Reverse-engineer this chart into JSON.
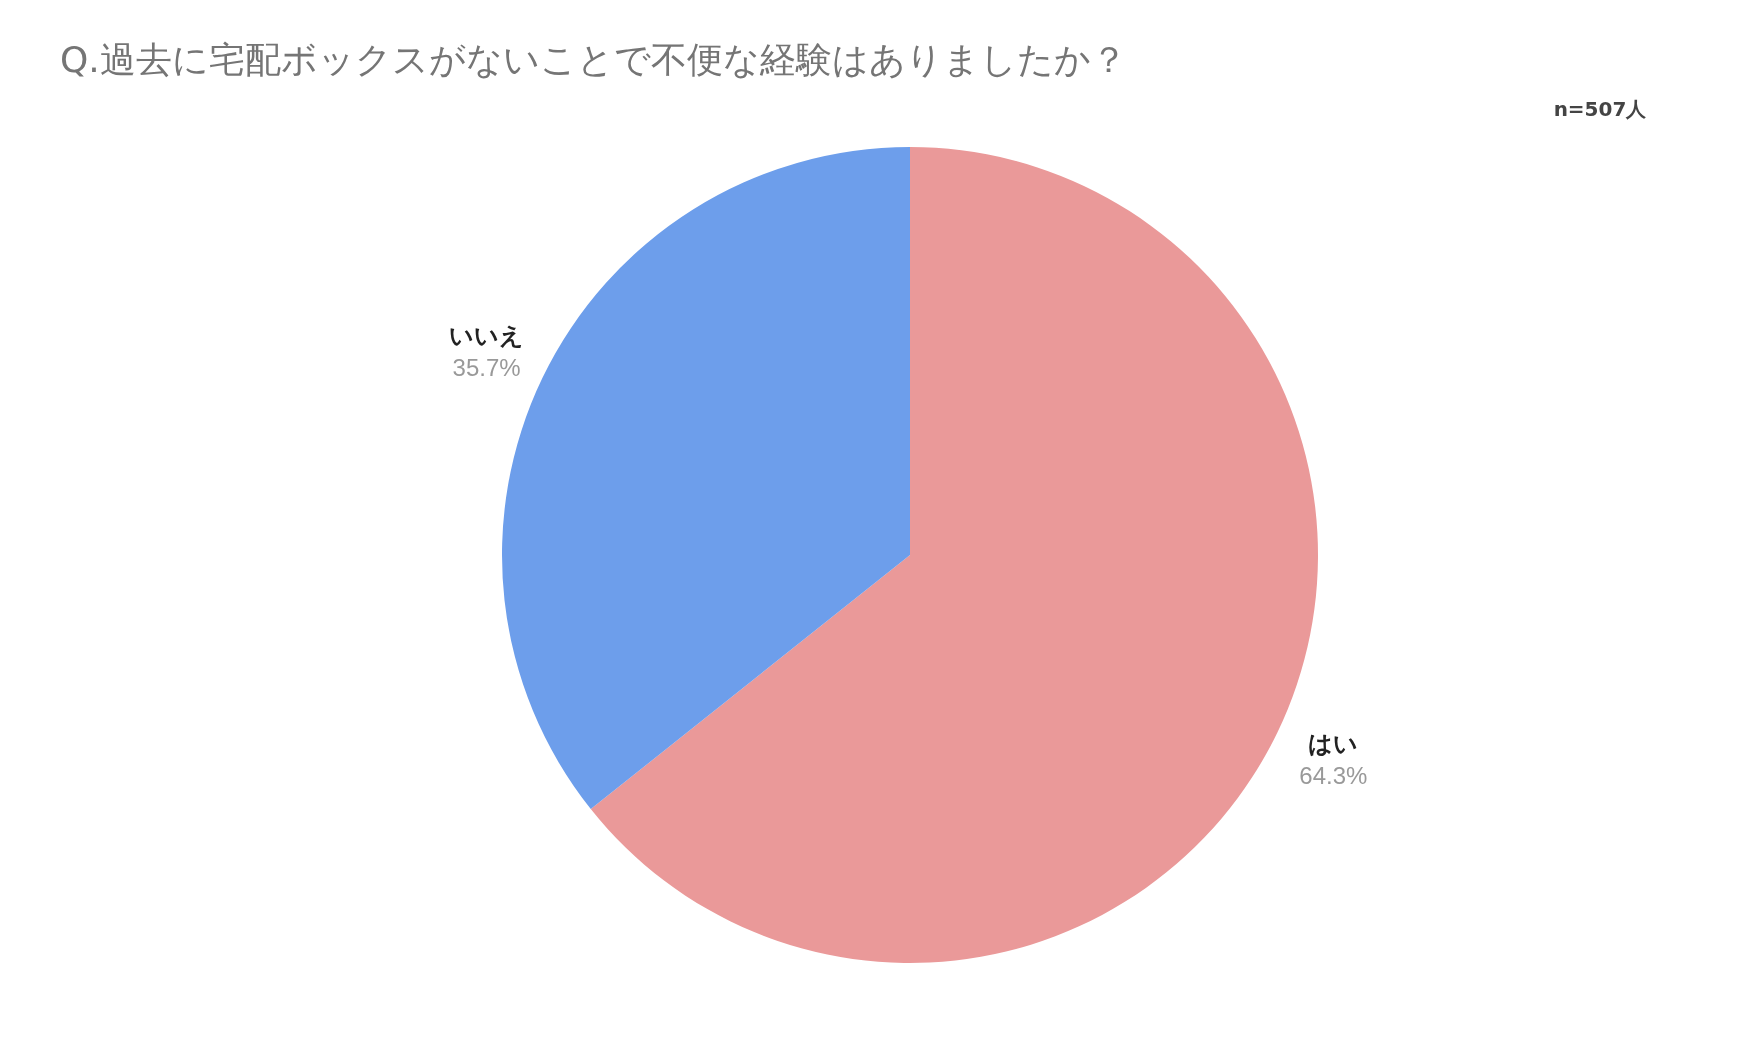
{
  "chart_data": {
    "type": "pie",
    "title": "Q.過去に宅配ボックスがないことで不便な経験はありましたか？",
    "annotations": [
      "n=507人"
    ],
    "categories": [
      "はい",
      "いいえ"
    ],
    "values": [
      64.3,
      35.7
    ],
    "value_labels": [
      "64.3%",
      "35.7%"
    ],
    "colors": [
      "#ea9999",
      "#6d9eeb"
    ],
    "legend": false
  }
}
